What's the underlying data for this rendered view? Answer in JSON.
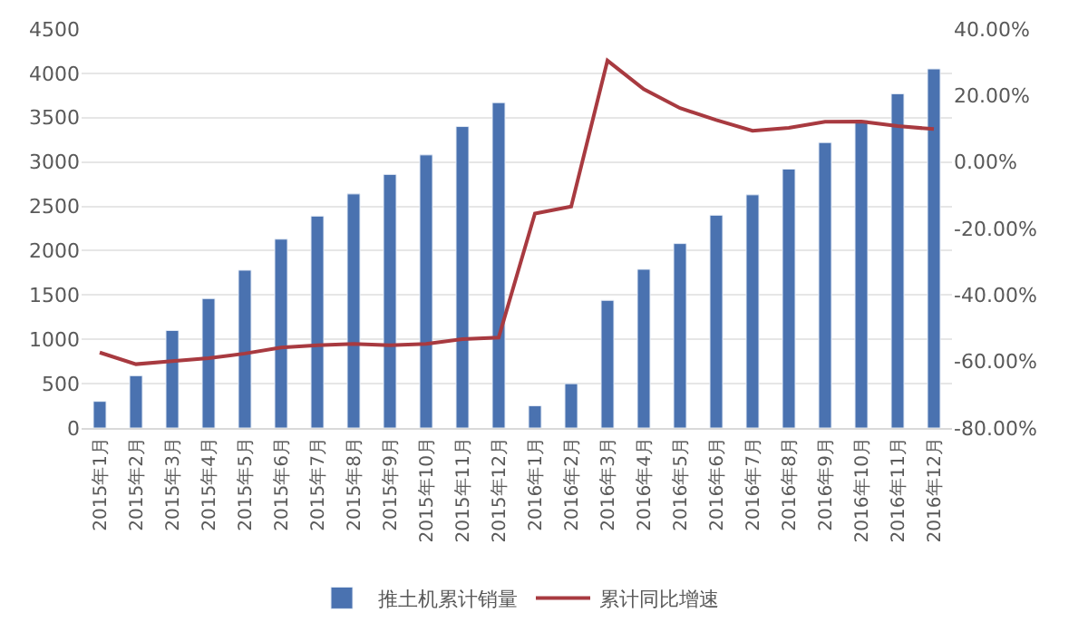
{
  "chart_data": {
    "type": "bar",
    "categories": [
      "2015年1月",
      "2015年2月",
      "2015年3月",
      "2015年4月",
      "2015年5月",
      "2015年6月",
      "2015年7月",
      "2015年8月",
      "2015年9月",
      "2015年10月",
      "2015年11月",
      "2015年12月",
      "2016年1月",
      "2016年2月",
      "2016年3月",
      "2016年4月",
      "2016年5月",
      "2016年6月",
      "2016年7月",
      "2016年8月",
      "2016年9月",
      "2016年10月",
      "2016年11月",
      "2016年12月"
    ],
    "series": [
      {
        "name": "推土机累计销量",
        "color": "#4a72b0",
        "values": [
          300,
          590,
          1100,
          1460,
          1780,
          2130,
          2390,
          2640,
          2860,
          3080,
          3400,
          3670,
          250,
          500,
          1440,
          1790,
          2080,
          2400,
          2630,
          2920,
          3220,
          3470,
          3770,
          4050
        ]
      },
      {
        "name": "累计同比增速",
        "type": "line",
        "axis": "y2",
        "color": "#a83a40",
        "values": [
          -57.3,
          -60.8,
          -59.9,
          -59.0,
          -57.6,
          -55.8,
          -55.1,
          -54.7,
          -55.1,
          -54.7,
          -53.3,
          -52.8,
          -15.5,
          -13.4,
          30.5,
          21.9,
          16.2,
          12.6,
          9.4,
          10.3,
          12.1,
          12.2,
          10.8,
          9.9
        ]
      }
    ],
    "ylim": [
      0,
      4500
    ],
    "yticks": [
      0,
      500,
      1000,
      1500,
      2000,
      2500,
      3000,
      3500,
      4000,
      4500
    ],
    "y2lim": [
      -80,
      40
    ],
    "y2ticks": [
      {
        "value": -80,
        "label": "-80.00%"
      },
      {
        "value": -60,
        "label": "-60.00%"
      },
      {
        "value": -40,
        "label": "-40.00%"
      },
      {
        "value": -20,
        "label": "-20.00%"
      },
      {
        "value": 0,
        "label": "0.00%"
      },
      {
        "value": 20,
        "label": "20.00%"
      },
      {
        "value": 40,
        "label": "40.00%"
      }
    ],
    "grid": "y",
    "legend": "bottom",
    "marker": "none",
    "line_style": "solid"
  }
}
